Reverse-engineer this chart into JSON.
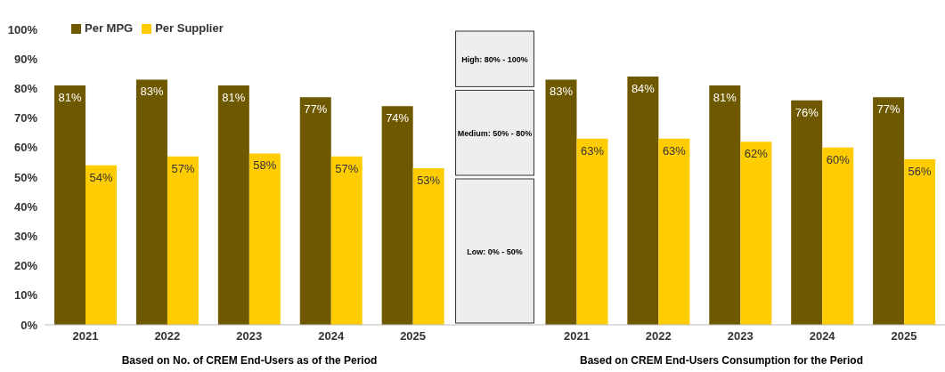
{
  "chart_data": {
    "type": "bar",
    "categories": [
      "2021",
      "2022",
      "2023",
      "2024",
      "2025",
      null,
      "2021",
      "2022",
      "2023",
      "2024",
      "2025"
    ],
    "series": [
      {
        "name": "Per MPG",
        "color": "#6e5800",
        "values": [
          81,
          83,
          81,
          77,
          74,
          null,
          83,
          84,
          81,
          76,
          77
        ],
        "value_labels": [
          "81%",
          "83%",
          "81%",
          "77%",
          "74%",
          null,
          "83%",
          "84%",
          "81%",
          "76%",
          "77%"
        ]
      },
      {
        "name": "Per Supplier",
        "color": "#ffcc00",
        "values": [
          54,
          57,
          58,
          57,
          53,
          null,
          63,
          63,
          62,
          60,
          56
        ],
        "value_labels": [
          "54%",
          "57%",
          "58%",
          "57%",
          "53%",
          null,
          "63%",
          "63%",
          "62%",
          "60%",
          "56%"
        ]
      }
    ],
    "ylim": [
      0,
      100
    ],
    "yticks": [
      {
        "value": 0,
        "label": "0%"
      },
      {
        "value": 10,
        "label": "10%"
      },
      {
        "value": 20,
        "label": "20%"
      },
      {
        "value": 30,
        "label": "30%"
      },
      {
        "value": 40,
        "label": "40%"
      },
      {
        "value": 50,
        "label": "50%"
      },
      {
        "value": 60,
        "label": "60%"
      },
      {
        "value": 70,
        "label": "70%"
      },
      {
        "value": 80,
        "label": "80%"
      },
      {
        "value": 90,
        "label": "90%"
      },
      {
        "value": 100,
        "label": "100%"
      }
    ],
    "bands": [
      {
        "axis": "y",
        "from": 80,
        "to": 100,
        "label": "High: 80% - 100%",
        "color": "#eeeeee"
      },
      {
        "axis": "y",
        "from": 50,
        "to": 80,
        "label": "Medium: 50% - 80%",
        "color": "#eeeeee"
      },
      {
        "axis": "y",
        "from": 0,
        "to": 50,
        "label": "Low: 0% - 50%",
        "color": "#eeeeee"
      }
    ],
    "legend": "top left",
    "grid": false,
    "annotations": [
      "Based on No. of CREM End-Users as of the Period",
      "Based on CREM End-Users Consumption for the Period"
    ]
  }
}
